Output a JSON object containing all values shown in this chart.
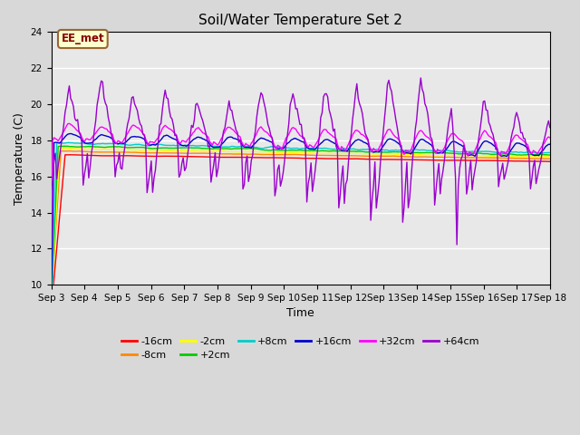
{
  "title": "Soil/Water Temperature Set 2",
  "xlabel": "Time",
  "ylabel": "Temperature (C)",
  "ylim": [
    10,
    24
  ],
  "yticks": [
    10,
    12,
    14,
    16,
    18,
    20,
    22,
    24
  ],
  "annotation_text": "EE_met",
  "annotation_box_color": "#ffffcc",
  "annotation_box_edge_color": "#996633",
  "annotation_text_color": "#880000",
  "series_order": [
    "-16cm",
    "-8cm",
    "-2cm",
    "+2cm",
    "+8cm",
    "+16cm",
    "+32cm",
    "+64cm"
  ],
  "series_colors": {
    "-16cm": "#ff0000",
    "-8cm": "#ff8800",
    "-2cm": "#ffff00",
    "+2cm": "#00cc00",
    "+8cm": "#00cccc",
    "+16cm": "#0000cc",
    "+32cm": "#ff00ff",
    "+64cm": "#9900cc"
  },
  "plot_bg_color": "#e8e8e8",
  "fig_bg_color": "#d8d8d8",
  "grid_color": "#ffffff",
  "n_points": 384,
  "n_days": 16
}
